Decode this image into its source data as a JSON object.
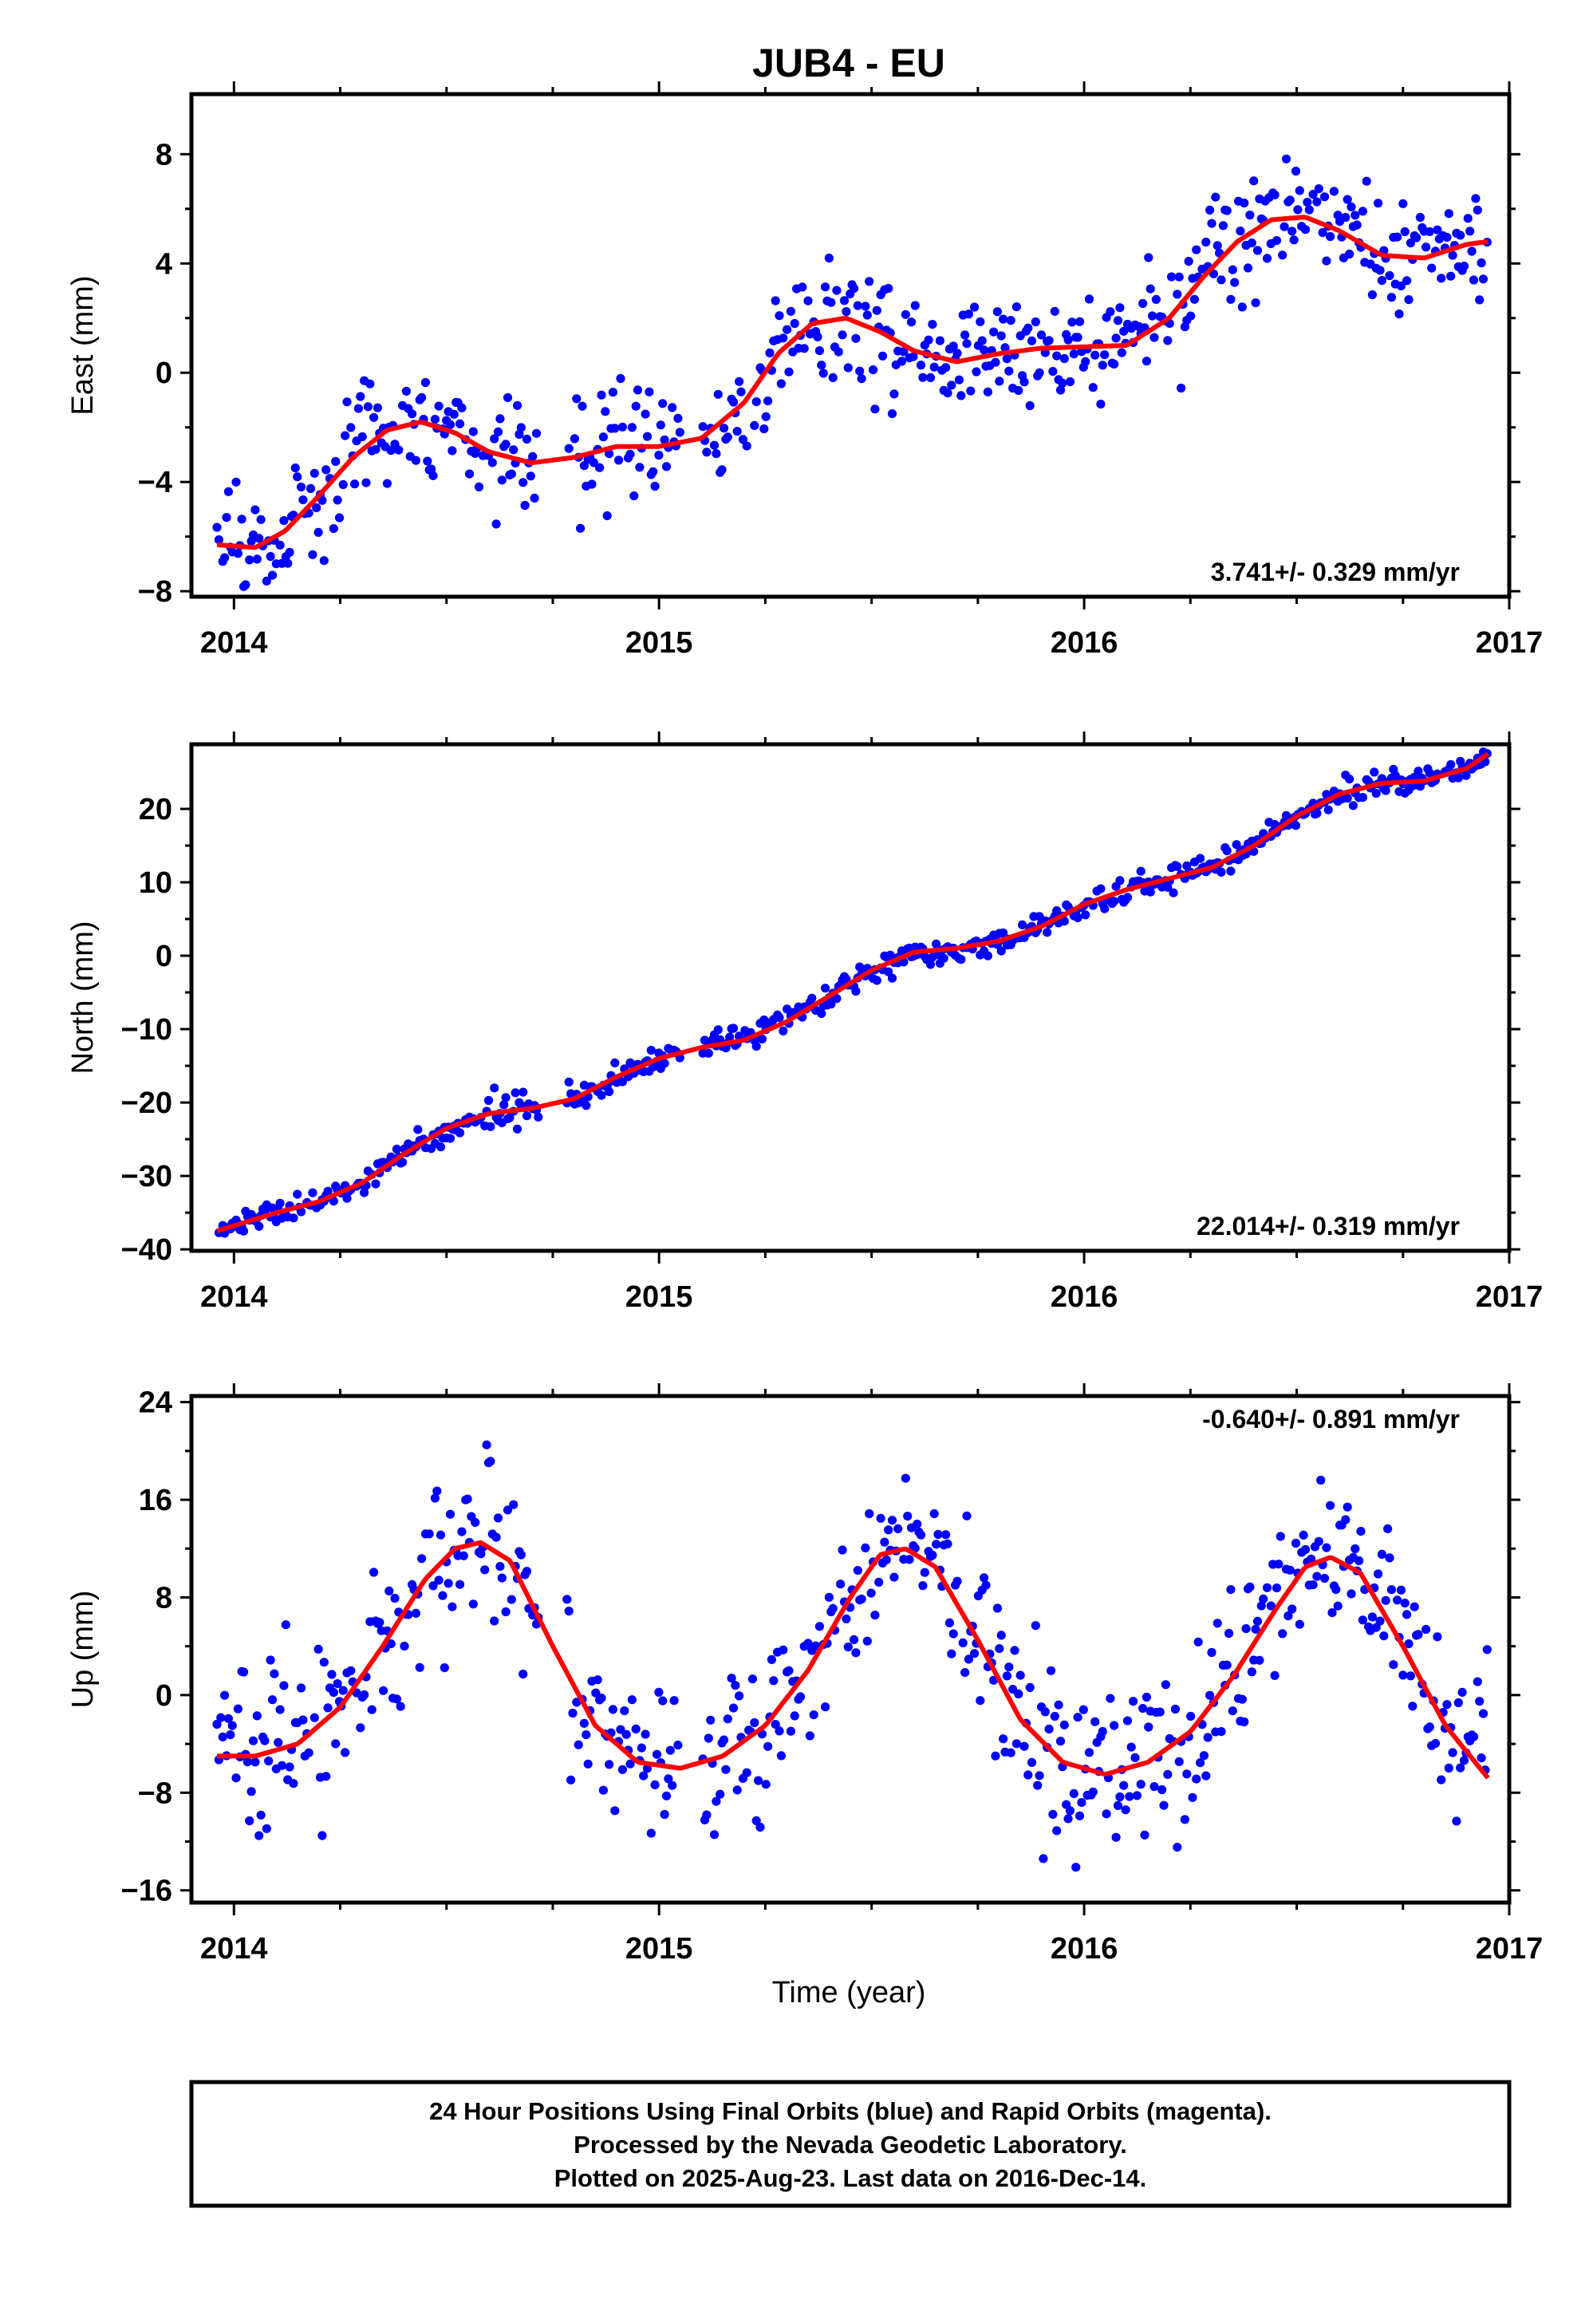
{
  "title": "JUB4 - EU",
  "xlabel": "Time (year)",
  "footer": [
    "24 Hour Positions Using Final Orbits (blue) and Rapid Orbits (magenta).",
    "Processed by the Nevada Geodetic Laboratory.",
    "Plotted on 2025-Aug-23. Last data on 2016-Dec-14."
  ],
  "colors": {
    "data": "#0000ff",
    "fit": "#ff0000",
    "axis": "#000000"
  },
  "chart_data": [
    {
      "type": "scatter",
      "ylabel": "East (mm)",
      "xlim": [
        2013.9,
        2017.0
      ],
      "ylim": [
        -8.2,
        10.2
      ],
      "xticks": [
        2014,
        2015,
        2016,
        2017
      ],
      "yticks": [
        -8,
        -4,
        0,
        4,
        8
      ],
      "rate_text": "3.741+/- 0.329 mm/yr",
      "rate_position": "bottom-right",
      "series": [
        {
          "role": "data",
          "generator": {
            "start": 2013.96,
            "end": 2016.95,
            "step": 0.0045,
            "noise": 1.05,
            "gaps": [
              [
                2014.72,
                2014.78
              ],
              [
                2015.05,
                2015.1
              ]
            ]
          }
        },
        {
          "role": "fit",
          "x": [
            2013.96,
            2014.05,
            2014.12,
            2014.2,
            2014.28,
            2014.36,
            2014.44,
            2014.52,
            2014.6,
            2014.7,
            2014.8,
            2014.9,
            2015.0,
            2015.1,
            2015.2,
            2015.28,
            2015.36,
            2015.44,
            2015.52,
            2015.6,
            2015.7,
            2015.8,
            2015.9,
            2016.0,
            2016.1,
            2016.2,
            2016.28,
            2016.36,
            2016.44,
            2016.52,
            2016.6,
            2016.7,
            2016.8,
            2016.9,
            2016.95
          ],
          "y": [
            -6.3,
            -6.4,
            -5.8,
            -4.5,
            -3.1,
            -2.1,
            -1.8,
            -2.2,
            -2.9,
            -3.3,
            -3.1,
            -2.7,
            -2.7,
            -2.4,
            -1.1,
            0.7,
            1.8,
            2.0,
            1.5,
            0.8,
            0.4,
            0.7,
            0.9,
            0.95,
            1.0,
            2.0,
            3.5,
            4.8,
            5.6,
            5.7,
            5.2,
            4.3,
            4.2,
            4.7,
            4.8
          ]
        }
      ]
    },
    {
      "type": "scatter",
      "ylabel": "North (mm)",
      "xlim": [
        2013.9,
        2017.0
      ],
      "ylim": [
        -40.2,
        28.8
      ],
      "xticks": [
        2014,
        2015,
        2016,
        2017
      ],
      "yticks": [
        -40,
        -30,
        -20,
        -10,
        0,
        10,
        20
      ],
      "rate_text": "22.014+/- 0.319 mm/yr",
      "rate_position": "bottom-right",
      "series": [
        {
          "role": "data",
          "generator": {
            "start": 2013.96,
            "end": 2016.95,
            "step": 0.0045,
            "noise": 0.9,
            "gaps": [
              [
                2014.72,
                2014.78
              ],
              [
                2015.05,
                2015.1
              ]
            ]
          }
        },
        {
          "role": "fit",
          "x": [
            2013.96,
            2014.1,
            2014.2,
            2014.3,
            2014.4,
            2014.5,
            2014.6,
            2014.7,
            2014.8,
            2014.9,
            2015.0,
            2015.1,
            2015.2,
            2015.3,
            2015.4,
            2015.5,
            2015.6,
            2015.7,
            2015.8,
            2015.9,
            2016.0,
            2016.1,
            2016.2,
            2016.3,
            2016.4,
            2016.5,
            2016.6,
            2016.7,
            2016.8,
            2016.9,
            2016.95
          ],
          "y": [
            -37.5,
            -35.0,
            -33.5,
            -31.0,
            -27.0,
            -23.5,
            -21.5,
            -20.8,
            -19.5,
            -16.5,
            -14.0,
            -12.5,
            -11.5,
            -9.0,
            -5.5,
            -2.0,
            0.5,
            1.0,
            2.0,
            4.0,
            7.0,
            9.0,
            10.5,
            12.0,
            15.0,
            19.0,
            22.0,
            23.5,
            23.8,
            25.5,
            27.5
          ]
        }
      ]
    },
    {
      "type": "scatter",
      "ylabel": "Up (mm)",
      "xlim": [
        2013.9,
        2017.0
      ],
      "ylim": [
        -17.0,
        24.5
      ],
      "xticks": [
        2014,
        2015,
        2016,
        2017
      ],
      "yticks": [
        -16,
        -8,
        0,
        8,
        16,
        24
      ],
      "rate_text": "-0.640+/- 0.891 mm/yr",
      "rate_position": "top-right",
      "series": [
        {
          "role": "data",
          "generator": {
            "start": 2013.96,
            "end": 2016.95,
            "step": 0.0045,
            "noise": 3.3,
            "gaps": [
              [
                2014.72,
                2014.78
              ],
              [
                2015.05,
                2015.1
              ]
            ]
          }
        },
        {
          "role": "fit",
          "x": [
            2013.96,
            2014.05,
            2014.15,
            2014.25,
            2014.35,
            2014.45,
            2014.52,
            2014.58,
            2014.65,
            2014.75,
            2014.85,
            2014.95,
            2015.05,
            2015.15,
            2015.25,
            2015.35,
            2015.45,
            2015.52,
            2015.58,
            2015.65,
            2015.75,
            2015.85,
            2015.95,
            2016.05,
            2016.15,
            2016.25,
            2016.35,
            2016.45,
            2016.52,
            2016.58,
            2016.65,
            2016.75,
            2016.85,
            2016.95
          ],
          "y": [
            -5.0,
            -5.0,
            -4.0,
            -1.0,
            4.0,
            9.5,
            12.0,
            12.5,
            11.0,
            4.0,
            -2.5,
            -5.5,
            -6.0,
            -5.0,
            -2.5,
            2.0,
            8.0,
            11.5,
            12.0,
            10.5,
            4.5,
            -2.0,
            -5.5,
            -6.5,
            -5.5,
            -3.0,
            1.5,
            7.0,
            10.5,
            11.3,
            10.0,
            4.0,
            -2.5,
            -6.8
          ]
        }
      ]
    }
  ]
}
